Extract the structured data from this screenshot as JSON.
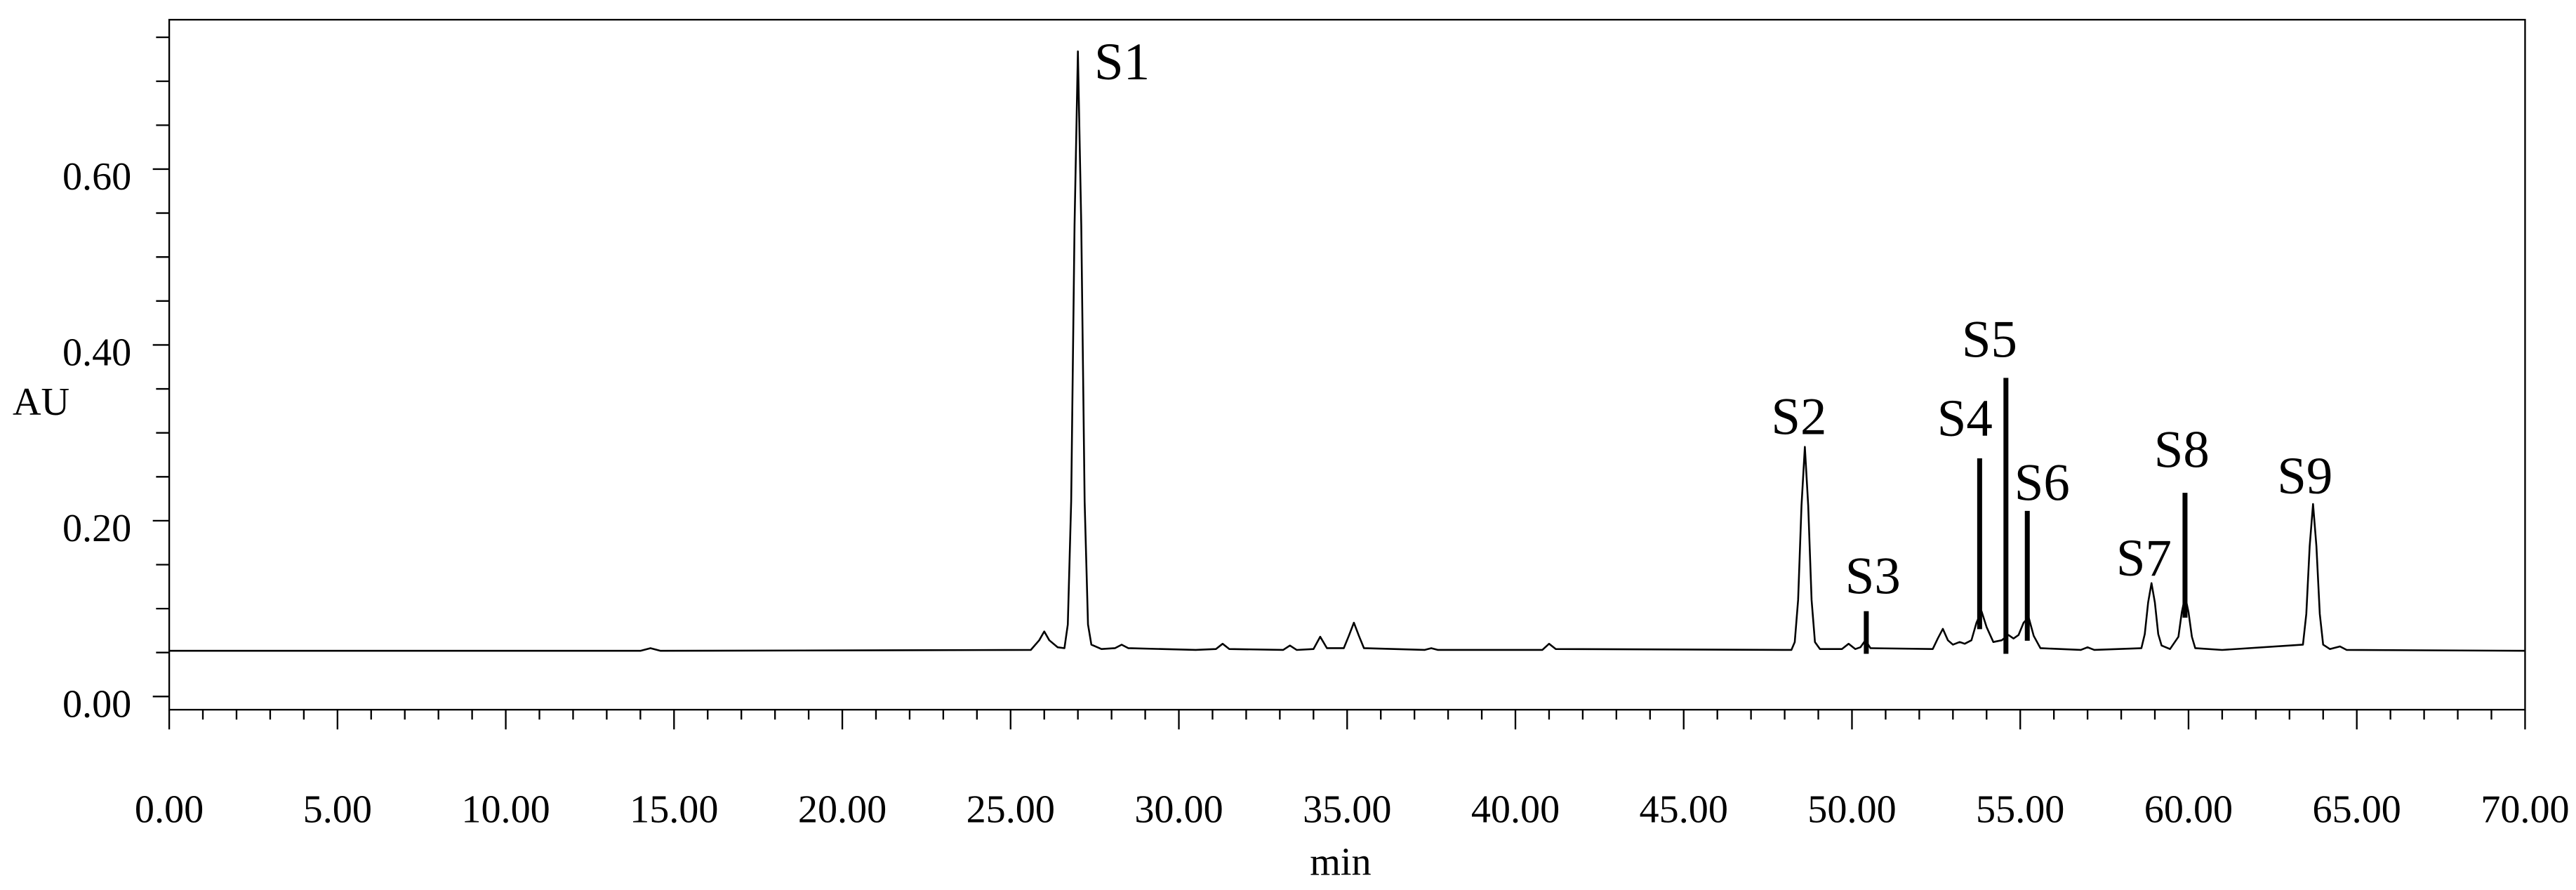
{
  "chart_data": {
    "type": "line",
    "xlabel": "min",
    "ylabel": "AU",
    "x": [
      0,
      14.0,
      14.3,
      14.6,
      25.6,
      25.85,
      26.0,
      26.15,
      26.4,
      26.6,
      26.7,
      26.8,
      26.9,
      27.0,
      27.1,
      27.2,
      27.3,
      27.4,
      27.7,
      28.1,
      28.3,
      28.5,
      29.5,
      30.5,
      31.1,
      31.3,
      31.5,
      33.1,
      33.3,
      33.5,
      34.0,
      34.2,
      34.4,
      34.9,
      35.05,
      35.2,
      35.35,
      35.5,
      37.3,
      37.5,
      37.7,
      40.8,
      41.0,
      41.2,
      48.2,
      48.3,
      48.4,
      48.5,
      48.6,
      48.7,
      48.8,
      48.9,
      49.05,
      49.7,
      49.9,
      50.1,
      50.25,
      50.4,
      50.55,
      52.4,
      52.55,
      52.7,
      52.85,
      53.0,
      53.2,
      53.35,
      53.55,
      53.7,
      53.85,
      54.0,
      54.2,
      54.45,
      54.65,
      54.8,
      54.95,
      55.1,
      55.25,
      55.4,
      55.6,
      56.8,
      57.0,
      57.2,
      58.6,
      58.7,
      58.8,
      58.9,
      59.0,
      59.1,
      59.2,
      59.45,
      59.7,
      59.8,
      59.9,
      60.0,
      60.1,
      60.2,
      61.0,
      63.4,
      63.5,
      63.6,
      63.7,
      63.8,
      63.9,
      64.0,
      64.2,
      64.5,
      64.7,
      70
    ],
    "series": [
      {
        "color": "#000000",
        "values": [
          0.052,
          0.052,
          0.055,
          0.052,
          0.053,
          0.064,
          0.074,
          0.064,
          0.056,
          0.055,
          0.082,
          0.222,
          0.536,
          0.734,
          0.536,
          0.222,
          0.082,
          0.059,
          0.054,
          0.055,
          0.059,
          0.055,
          0.054,
          0.053,
          0.054,
          0.06,
          0.054,
          0.053,
          0.058,
          0.053,
          0.054,
          0.068,
          0.055,
          0.055,
          0.069,
          0.084,
          0.069,
          0.055,
          0.053,
          0.055,
          0.053,
          0.053,
          0.06,
          0.054,
          0.053,
          0.062,
          0.11,
          0.217,
          0.284,
          0.217,
          0.11,
          0.062,
          0.054,
          0.054,
          0.06,
          0.054,
          0.056,
          0.064,
          0.055,
          0.054,
          0.066,
          0.077,
          0.064,
          0.059,
          0.062,
          0.06,
          0.064,
          0.084,
          0.097,
          0.079,
          0.062,
          0.064,
          0.07,
          0.066,
          0.07,
          0.084,
          0.09,
          0.069,
          0.055,
          0.053,
          0.056,
          0.053,
          0.055,
          0.071,
          0.107,
          0.129,
          0.107,
          0.071,
          0.058,
          0.054,
          0.068,
          0.096,
          0.114,
          0.096,
          0.068,
          0.055,
          0.053,
          0.059,
          0.094,
          0.171,
          0.219,
          0.171,
          0.094,
          0.059,
          0.054,
          0.057,
          0.053,
          0.052
        ]
      }
    ],
    "xlim": [
      0,
      70
    ],
    "ylim": [
      -0.015,
      0.77
    ],
    "xticks": [
      {
        "value": 0,
        "label": "0.00"
      },
      {
        "value": 5,
        "label": "5.00"
      },
      {
        "value": 10,
        "label": "10.00"
      },
      {
        "value": 15,
        "label": "15.00"
      },
      {
        "value": 20,
        "label": "20.00"
      },
      {
        "value": 25,
        "label": "25.00"
      },
      {
        "value": 30,
        "label": "30.00"
      },
      {
        "value": 35,
        "label": "35.00"
      },
      {
        "value": 40,
        "label": "40.00"
      },
      {
        "value": 45,
        "label": "45.00"
      },
      {
        "value": 50,
        "label": "50.00"
      },
      {
        "value": 55,
        "label": "55.00"
      },
      {
        "value": 60,
        "label": "60.00"
      },
      {
        "value": 65,
        "label": "65.00"
      },
      {
        "value": 70,
        "label": "70.00"
      }
    ],
    "x_minor_ticks": [
      1,
      2,
      3,
      4,
      6,
      7,
      8,
      9,
      11,
      12,
      13,
      14,
      16,
      17,
      18,
      19,
      21,
      22,
      23,
      24,
      26,
      27,
      28,
      29,
      31,
      32,
      33,
      34,
      36,
      37,
      38,
      39,
      41,
      42,
      43,
      44,
      46,
      47,
      48,
      49,
      51,
      52,
      53,
      54,
      56,
      57,
      58,
      59,
      61,
      62,
      63,
      64,
      66,
      67,
      68,
      69
    ],
    "yticks": [
      {
        "value": 0,
        "label": "0.00"
      },
      {
        "value": 0.2,
        "label": "0.20"
      },
      {
        "value": 0.4,
        "label": "0.40"
      },
      {
        "value": 0.6,
        "label": "0.60"
      }
    ],
    "y_minor_ticks": [
      0.05,
      0.1,
      0.15,
      0.25,
      0.3,
      0.35,
      0.45,
      0.5,
      0.55,
      0.65,
      0.7,
      0.75
    ],
    "annotations": [
      "S1",
      "S2",
      "S3",
      "S4",
      "S5",
      "S6",
      "S7",
      "S8",
      "S9"
    ]
  }
}
